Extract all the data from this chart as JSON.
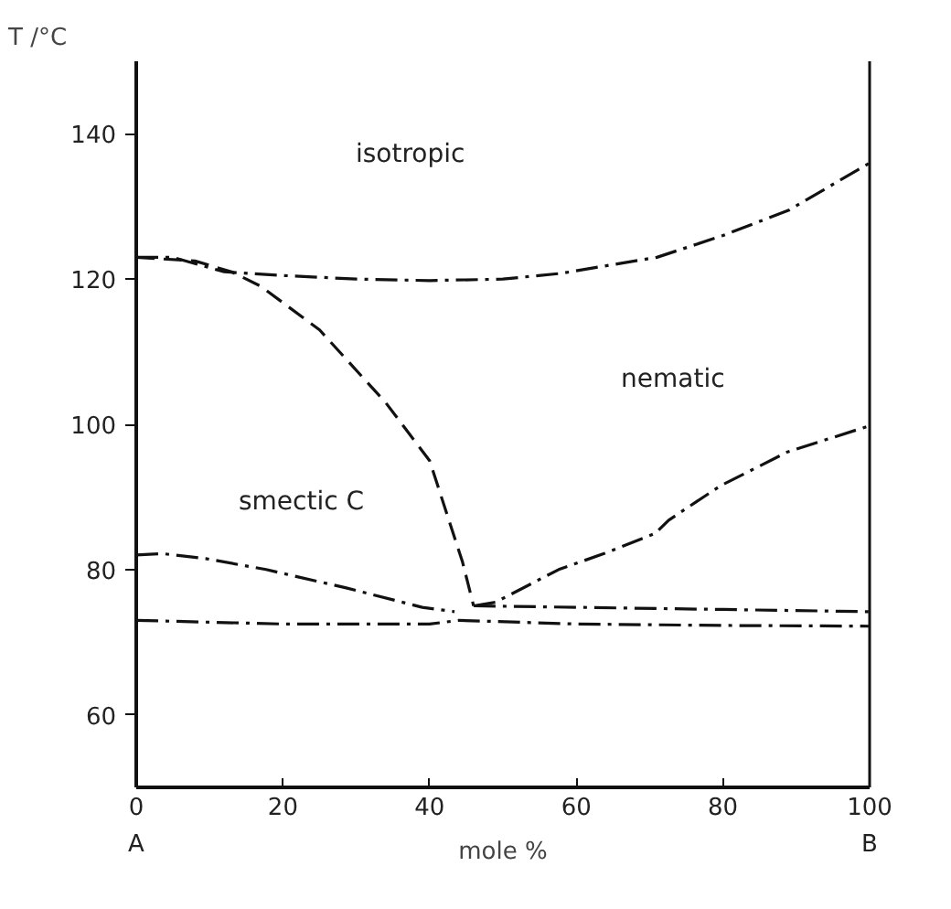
{
  "chart_data": {
    "type": "line",
    "xlabel": "mole %",
    "ylabel": "T /°C",
    "xlim": [
      0,
      100
    ],
    "ylim": [
      50,
      150
    ],
    "xticks": [
      0,
      20,
      40,
      60,
      80,
      100
    ],
    "yticks": [
      60,
      80,
      100,
      120,
      140
    ],
    "grid": false,
    "marker": "none",
    "series": [
      {
        "color": "#111111",
        "line_style": "dashdot",
        "x": [
          0,
          5,
          12,
          20,
          30,
          40,
          50,
          58,
          65,
          71,
          80,
          89,
          100
        ],
        "values": [
          123,
          123,
          121,
          120.5,
          120,
          119.8,
          120,
          120.8,
          122,
          123,
          126,
          129.5,
          136
        ]
      },
      {
        "color": "#111111",
        "line_style": "dashed",
        "x": [
          0,
          8,
          13,
          17,
          25,
          34,
          40,
          44.5,
          46
        ],
        "values": [
          123,
          122.5,
          121,
          119,
          113,
          103,
          95,
          81,
          75
        ]
      },
      {
        "color": "#111111",
        "line_style": "dashdot",
        "x": [
          0,
          3.5,
          9.5,
          17.7,
          28.5,
          39,
          43.4
        ],
        "values": [
          82,
          82.2,
          81.5,
          80,
          77.5,
          74.8,
          74.2
        ]
      },
      {
        "color": "#111111",
        "line_style": "dashdot",
        "x": [
          46,
          49,
          57.6,
          63.8,
          70.8,
          72.6,
          79.6,
          88.8,
          100
        ],
        "values": [
          75,
          75.5,
          80,
          82.2,
          85,
          86.8,
          91.5,
          96.2,
          99.8
        ]
      },
      {
        "color": "#111111",
        "line_style": "dashdot",
        "x": [
          46,
          60,
          80,
          100
        ],
        "values": [
          75,
          74.8,
          74.5,
          74.2
        ]
      },
      {
        "color": "#111111",
        "line_style": "dashdot",
        "x": [
          0,
          20,
          40,
          44,
          60,
          80,
          100
        ],
        "values": [
          73,
          72.5,
          72.5,
          73,
          72.5,
          72.3,
          72.2
        ]
      }
    ],
    "annotations": [
      "isotropic",
      "nematic",
      "smectic C",
      "A",
      "B"
    ]
  }
}
